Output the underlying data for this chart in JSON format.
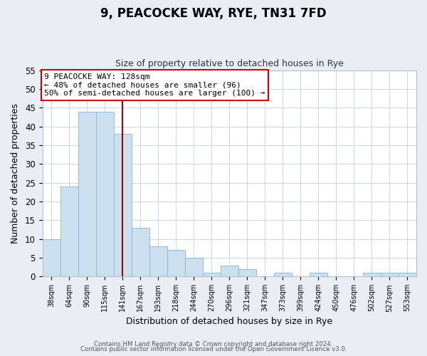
{
  "title": "9, PEACOCKE WAY, RYE, TN31 7FD",
  "subtitle": "Size of property relative to detached houses in Rye",
  "xlabel": "Distribution of detached houses by size in Rye",
  "ylabel": "Number of detached properties",
  "footer_line1": "Contains HM Land Registry data © Crown copyright and database right 2024.",
  "footer_line2": "Contains public sector information licensed under the Open Government Licence v3.0.",
  "bar_labels": [
    "38sqm",
    "64sqm",
    "90sqm",
    "115sqm",
    "141sqm",
    "167sqm",
    "193sqm",
    "218sqm",
    "244sqm",
    "270sqm",
    "296sqm",
    "321sqm",
    "347sqm",
    "373sqm",
    "399sqm",
    "424sqm",
    "450sqm",
    "476sqm",
    "502sqm",
    "527sqm",
    "553sqm"
  ],
  "bar_values": [
    10,
    24,
    44,
    44,
    38,
    13,
    8,
    7,
    5,
    1,
    3,
    2,
    0,
    1,
    0,
    1,
    0,
    0,
    1,
    1,
    1
  ],
  "bar_color": "#cce0f0",
  "bar_edge_color": "#8ab4d4",
  "vline_x": 4,
  "vline_color": "#aa0000",
  "annotation_title": "9 PEACOCKE WAY: 128sqm",
  "annotation_line2": "← 48% of detached houses are smaller (96)",
  "annotation_line3": "50% of semi-detached houses are larger (100) →",
  "annotation_box_color": "#ffffff",
  "annotation_box_edgecolor": "#cc0000",
  "ylim": [
    0,
    55
  ],
  "yticks": [
    0,
    5,
    10,
    15,
    20,
    25,
    30,
    35,
    40,
    45,
    50,
    55
  ],
  "background_color": "#e8eef4",
  "plot_background_color": "#ffffff",
  "grid_color": "#c8d8e8",
  "title_fontsize": 12,
  "subtitle_fontsize": 9
}
